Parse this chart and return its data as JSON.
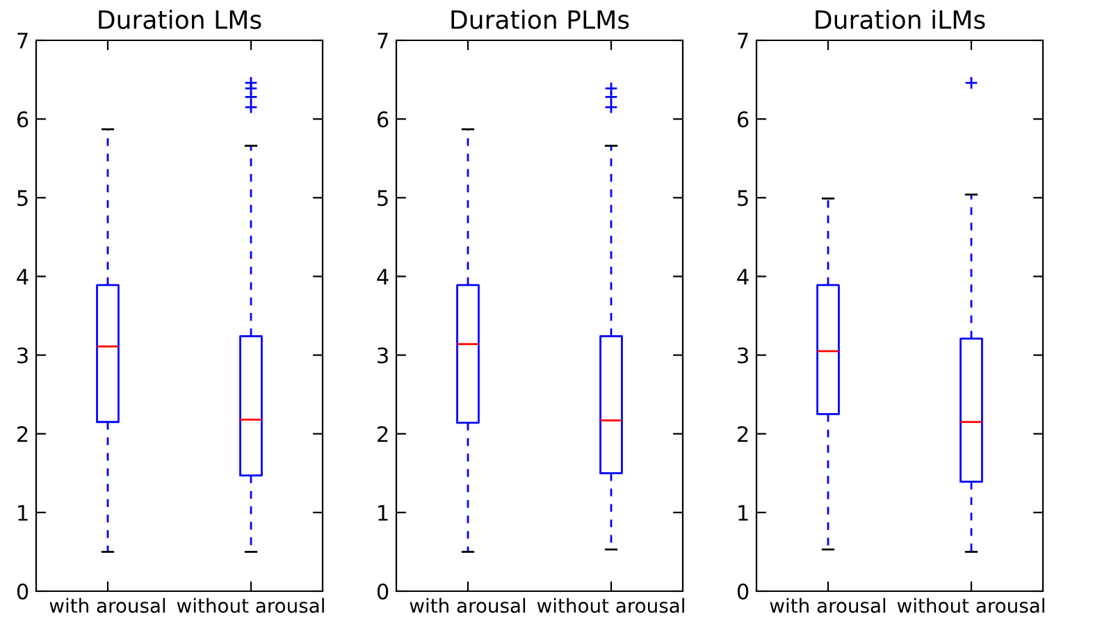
{
  "chart_data": [
    {
      "type": "box",
      "title": "Duration LMs",
      "categories": [
        "with arousal",
        "without arousal"
      ],
      "ylim": [
        0,
        7
      ],
      "yticks": [
        0,
        1,
        2,
        3,
        4,
        5,
        6,
        7
      ],
      "grid": false,
      "boxes": [
        {
          "low": 0.5,
          "q1": 2.15,
          "median": 3.11,
          "q3": 3.89,
          "high": 5.87
        },
        {
          "low": 0.5,
          "q1": 1.47,
          "median": 2.18,
          "q3": 3.24,
          "high": 5.66,
          "outliers": [
            6.15,
            6.28,
            6.39,
            6.46
          ]
        }
      ]
    },
    {
      "type": "box",
      "title": "Duration PLMs",
      "categories": [
        "with arousal",
        "without arousal"
      ],
      "ylim": [
        0,
        7
      ],
      "yticks": [
        0,
        1,
        2,
        3,
        4,
        5,
        6,
        7
      ],
      "grid": false,
      "boxes": [
        {
          "low": 0.5,
          "q1": 2.14,
          "median": 3.14,
          "q3": 3.89,
          "high": 5.87
        },
        {
          "low": 0.53,
          "q1": 1.5,
          "median": 2.17,
          "q3": 3.24,
          "high": 5.66,
          "outliers": [
            6.15,
            6.28,
            6.39
          ]
        }
      ]
    },
    {
      "type": "box",
      "title": "Duration iLMs",
      "categories": [
        "with arousal",
        "without arousal"
      ],
      "ylim": [
        0,
        7
      ],
      "yticks": [
        0,
        1,
        2,
        3,
        4,
        5,
        6,
        7
      ],
      "grid": false,
      "boxes": [
        {
          "low": 0.53,
          "q1": 2.25,
          "median": 3.05,
          "q3": 3.89,
          "high": 4.99
        },
        {
          "low": 0.5,
          "q1": 1.39,
          "median": 2.15,
          "q3": 3.21,
          "high": 5.04,
          "outliers": [
            6.46
          ]
        }
      ]
    }
  ]
}
